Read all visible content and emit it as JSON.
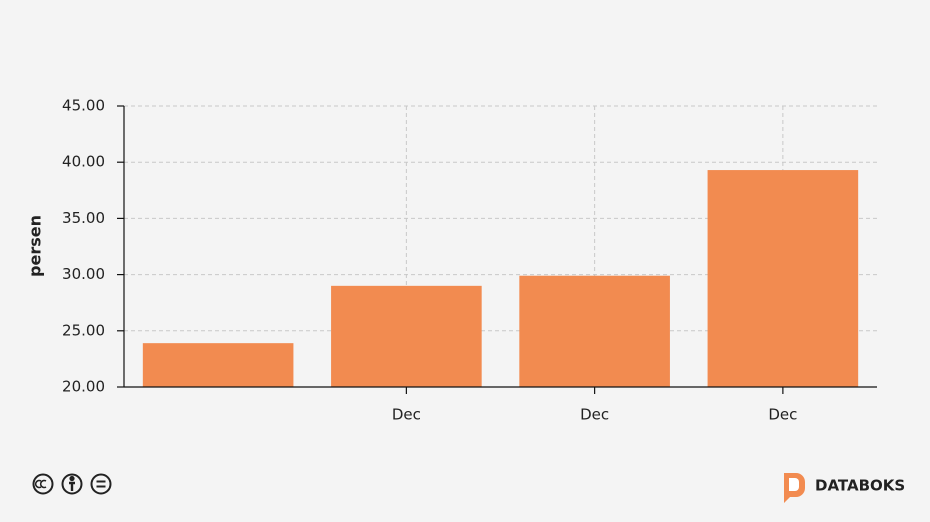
{
  "chart_data": {
    "type": "bar",
    "y_label": "persen",
    "categories": [
      null,
      "Dec",
      "Dec",
      "Dec"
    ],
    "values": [
      23.9,
      29.0,
      29.9,
      39.3
    ],
    "color": "#f28b50",
    "ylim": [
      20,
      45
    ],
    "yticks": [
      {
        "value": 20,
        "label": "20.00"
      },
      {
        "value": 25,
        "label": "25.00"
      },
      {
        "value": 30,
        "label": "30.00"
      },
      {
        "value": 35,
        "label": "35.00"
      },
      {
        "value": 40,
        "label": "40.00"
      },
      {
        "value": 45,
        "label": "45.00"
      }
    ],
    "grid": true
  },
  "brand": "DATABOKS"
}
